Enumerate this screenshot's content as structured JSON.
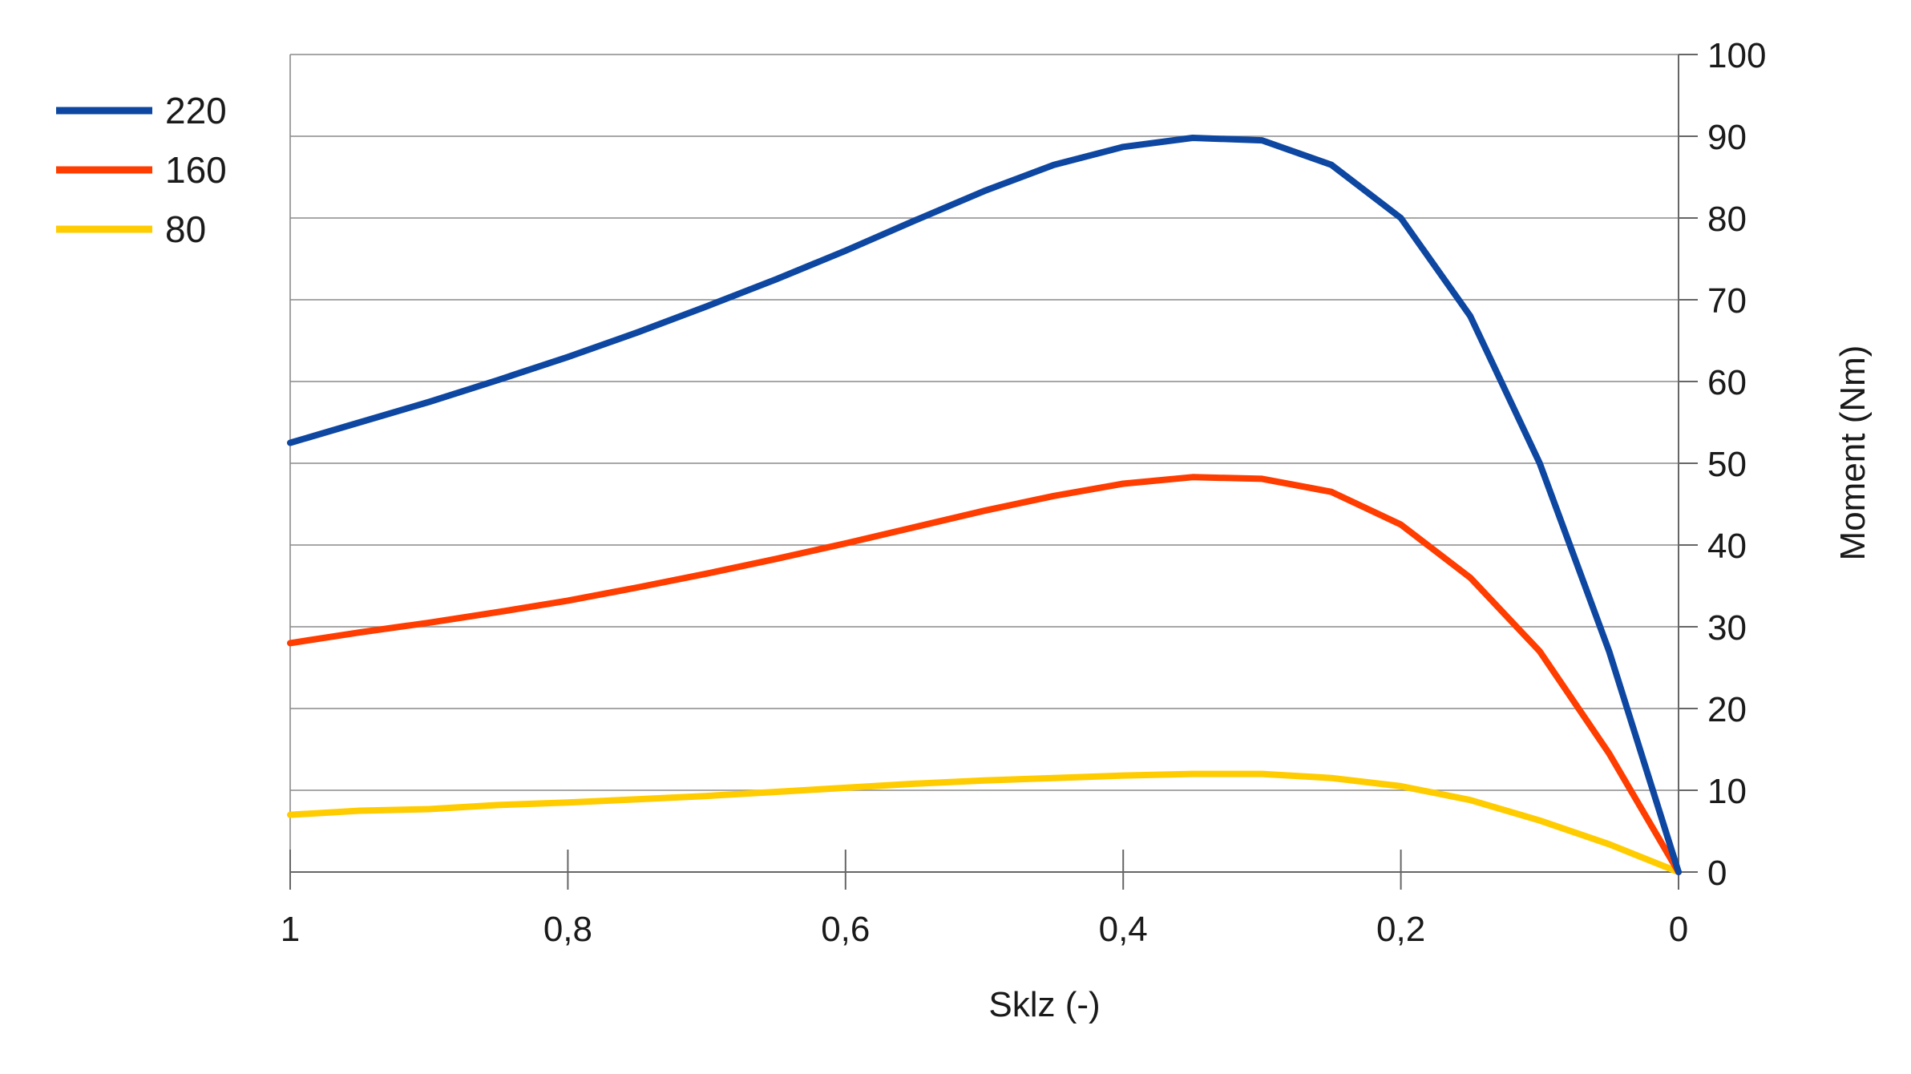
{
  "chart_data": {
    "type": "line",
    "xlabel": "Sklz (-)",
    "ylabel": "Moment (Nm)",
    "xlim": [
      1,
      0
    ],
    "ylim": [
      0,
      100
    ],
    "x_reversed": true,
    "y_axis_side": "right",
    "grid": true,
    "legend_position": "top-left",
    "x_ticks": [
      {
        "value": 1,
        "label": "1"
      },
      {
        "value": 0.8,
        "label": "0,8"
      },
      {
        "value": 0.6,
        "label": "0,6"
      },
      {
        "value": 0.4,
        "label": "0,4"
      },
      {
        "value": 0.2,
        "label": "0,2"
      },
      {
        "value": 0,
        "label": "0"
      }
    ],
    "y_ticks": [
      {
        "value": 0,
        "label": "0"
      },
      {
        "value": 10,
        "label": "10"
      },
      {
        "value": 20,
        "label": "20"
      },
      {
        "value": 30,
        "label": "30"
      },
      {
        "value": 40,
        "label": "40"
      },
      {
        "value": 50,
        "label": "50"
      },
      {
        "value": 60,
        "label": "60"
      },
      {
        "value": 70,
        "label": "70"
      },
      {
        "value": 80,
        "label": "80"
      },
      {
        "value": 90,
        "label": "90"
      },
      {
        "value": 100,
        "label": "100"
      }
    ],
    "x": [
      1,
      0.95,
      0.9,
      0.85,
      0.8,
      0.75,
      0.7,
      0.65,
      0.6,
      0.55,
      0.5,
      0.45,
      0.4,
      0.35,
      0.3,
      0.25,
      0.2,
      0.15,
      0.1,
      0.05,
      0
    ],
    "series": [
      {
        "name": "220",
        "color": "#0d47a1",
        "values": [
          52.5,
          55,
          57.5,
          60.2,
          63,
          66,
          69.2,
          72.5,
          76,
          79.7,
          83.3,
          86.5,
          88.7,
          89.8,
          89.5,
          86.5,
          80,
          68,
          50,
          27,
          0
        ]
      },
      {
        "name": "160",
        "color": "#ff3d00",
        "values": [
          28,
          29.3,
          30.5,
          31.8,
          33.2,
          34.8,
          36.5,
          38.3,
          40.2,
          42.2,
          44.2,
          46,
          47.5,
          48.3,
          48.1,
          46.5,
          42.5,
          36,
          27,
          14.5,
          0
        ]
      },
      {
        "name": "80",
        "color": "#ffcc00",
        "values": [
          7,
          7.5,
          7.7,
          8.2,
          8.5,
          8.9,
          9.3,
          9.8,
          10.3,
          10.8,
          11.2,
          11.5,
          11.8,
          12,
          12,
          11.5,
          10.5,
          8.8,
          6.3,
          3.4,
          0
        ]
      }
    ]
  }
}
